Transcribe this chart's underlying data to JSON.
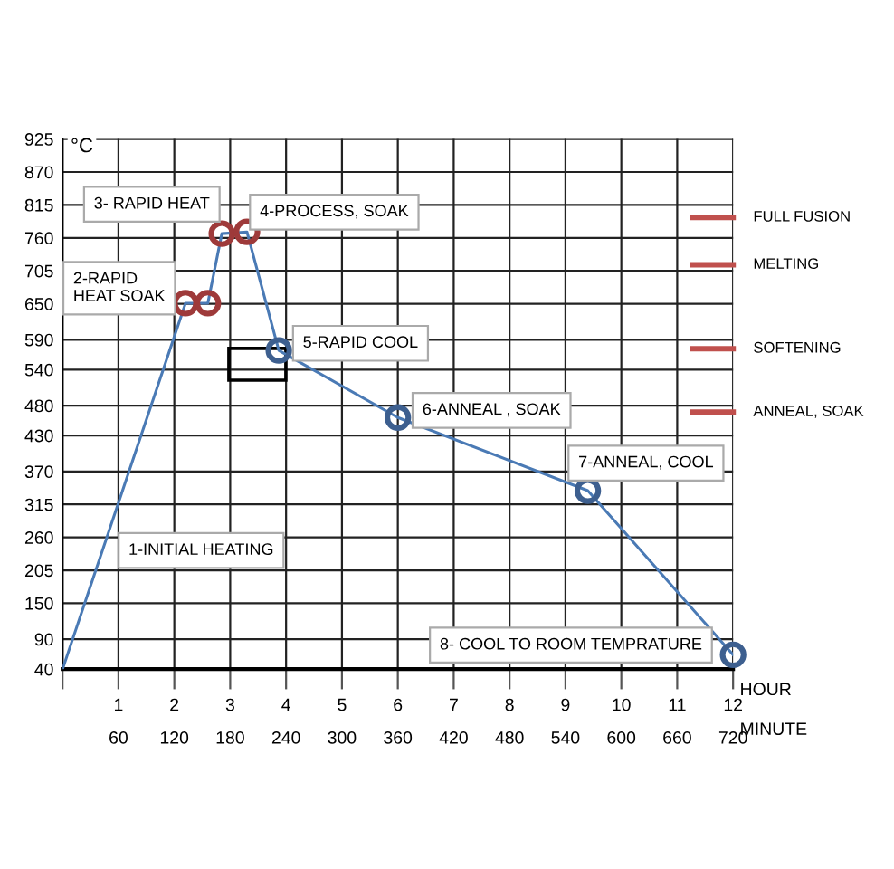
{
  "chart_data": {
    "type": "line",
    "ylabel": "°C",
    "xlabel": "HOUR",
    "x2label": "MINUTE",
    "xlim": [
      0,
      12
    ],
    "xticks": [
      {
        "value": 0,
        "label": null
      },
      1,
      2,
      3,
      4,
      5,
      6,
      7,
      8,
      9,
      10,
      11,
      12
    ],
    "x2lim": [
      0,
      720
    ],
    "x2ticks": [
      60,
      120,
      180,
      240,
      300,
      360,
      420,
      480,
      540,
      600,
      660,
      720
    ],
    "ylim": [
      40,
      925
    ],
    "yticks": [
      40,
      90,
      150,
      205,
      260,
      315,
      370,
      430,
      480,
      540,
      590,
      650,
      705,
      760,
      815,
      870,
      925
    ],
    "grid": true,
    "series": [
      {
        "color": "#4a7ab5",
        "marker": "none",
        "x": [
          0,
          2.2,
          2.6,
          2.85,
          3.3,
          3.87,
          6.0,
          9.4,
          12.0
        ],
        "values": [
          40,
          651,
          651,
          767,
          770,
          572,
          460,
          338,
          64
        ]
      },
      {
        "type": "scatter",
        "color": "#9e3a3a",
        "marker": "circle",
        "x": [
          2.2,
          2.6,
          2.85,
          3.3
        ],
        "values": [
          651,
          651,
          767,
          770
        ]
      },
      {
        "type": "scatter",
        "color": "#3d5f8f",
        "marker": "circle",
        "x": [
          3.87,
          6.0,
          9.4,
          12.0
        ],
        "values": [
          572,
          460,
          338,
          64
        ]
      }
    ],
    "ref_lines": [
      {
        "axis": "y",
        "value": 794,
        "label": "FULL FUSION",
        "color": "#c0504d"
      },
      {
        "axis": "y",
        "value": 715,
        "label": "MELTING",
        "color": "#c0504d"
      },
      {
        "axis": "y",
        "value": 575,
        "label": "SOFTENING",
        "color": "#c0504d"
      },
      {
        "axis": "y",
        "value": 469,
        "label": "ANNEAL, SOAK",
        "color": "#c0504d"
      }
    ],
    "annotations": [
      "1-INITIAL HEATING",
      "2-RAPID\nHEAT SOAK",
      "3- RAPID HEAT",
      "4-PROCESS, SOAK",
      "5-RAPID COOL",
      "6-ANNEAL , SOAK",
      "7-ANNEAL, COOL",
      "8- COOL TO ROOM TEMPRATURE"
    ]
  }
}
